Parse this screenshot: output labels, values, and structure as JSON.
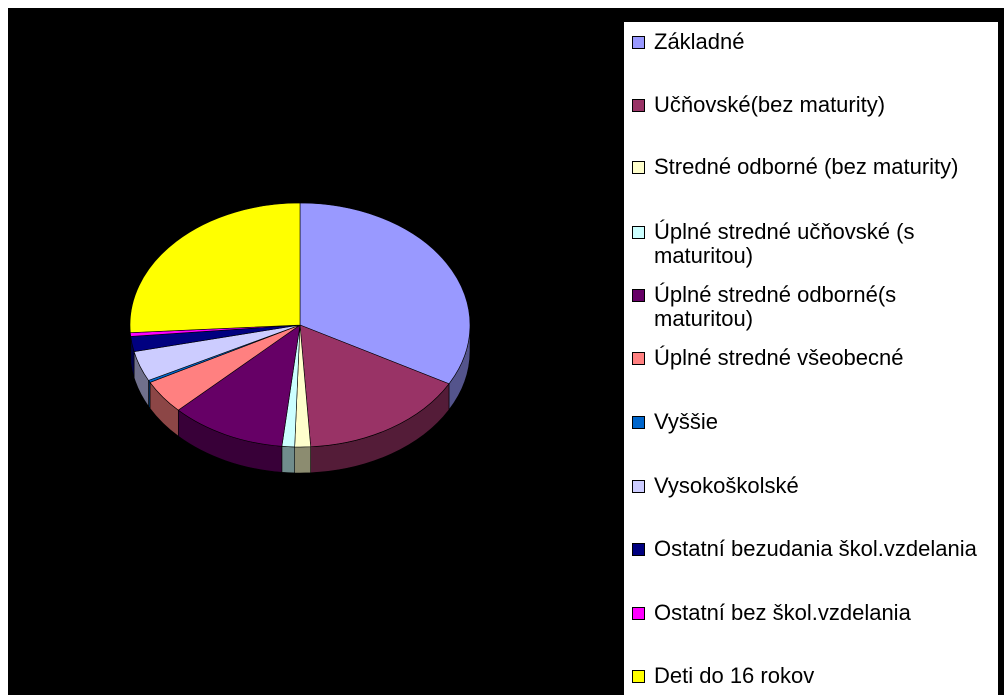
{
  "chart_data": {
    "type": "pie",
    "categories": [
      "Základné",
      "Učňovské(bez maturity)",
      "Stredné odborné (bez maturity)",
      "Úplné stredné učňovské (s maturitou)",
      "Úplné stredné odborné(s maturitou)",
      "Úplné stredné všeobecné",
      "Vyššie",
      "Vysokoškolské",
      "Ostatní bezudania škol.vzdelania",
      "Ostatní bez škol.vzdelania",
      "Deti do 16 rokov"
    ],
    "values": [
      33,
      16,
      1.5,
      1.2,
      11,
      4.5,
      0.3,
      4,
      2,
      0.5,
      26
    ],
    "colors": [
      "#9999ff",
      "#993366",
      "#ffffcc",
      "#ccffff",
      "#660066",
      "#ff8080",
      "#0066cc",
      "#ccccff",
      "#000080",
      "#ff00ff",
      "#ffff00"
    ],
    "legend": "right"
  }
}
